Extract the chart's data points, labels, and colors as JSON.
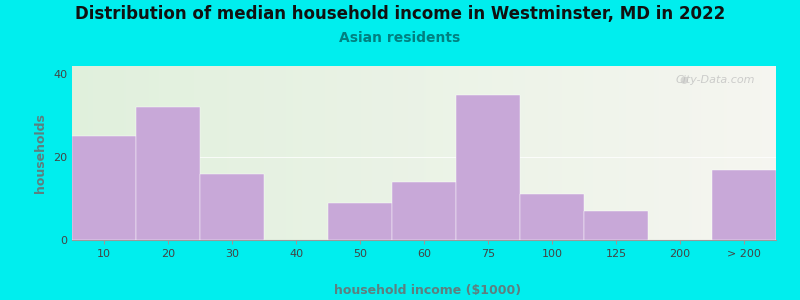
{
  "title": "Distribution of median household income in Westminster, MD in 2022",
  "subtitle": "Asian residents",
  "xlabel": "household income ($1000)",
  "ylabel": "households",
  "background_outer": "#00EEEE",
  "bar_color": "#C8A8D8",
  "yticks": [
    0,
    20,
    40
  ],
  "ylim": [
    0,
    42
  ],
  "values": [
    25,
    32,
    16,
    0,
    9,
    14,
    35,
    11,
    7,
    0,
    17
  ],
  "bar_lefts": [
    0,
    1,
    2,
    3,
    4,
    5,
    6,
    7,
    8,
    9,
    10
  ],
  "bar_actual_widths": [
    1,
    1,
    1,
    1,
    1,
    1,
    1,
    1,
    1,
    1,
    1
  ],
  "xtick_labels": [
    "10",
    "20",
    "30",
    "40",
    "50",
    "60",
    "75",
    "100",
    "125",
    "200",
    "> 200"
  ],
  "xtick_positions": [
    0.5,
    1.5,
    2.5,
    3.5,
    4.5,
    5.5,
    6.5,
    7.5,
    8.5,
    9.5,
    10.5
  ],
  "watermark": "City-Data.com",
  "title_fontsize": 12,
  "subtitle_fontsize": 10,
  "axis_label_fontsize": 9,
  "tick_fontsize": 8,
  "ylabel_color": "#5C8080",
  "xlabel_color": "#5C8080",
  "subtitle_color": "#008080",
  "title_color": "#111111"
}
